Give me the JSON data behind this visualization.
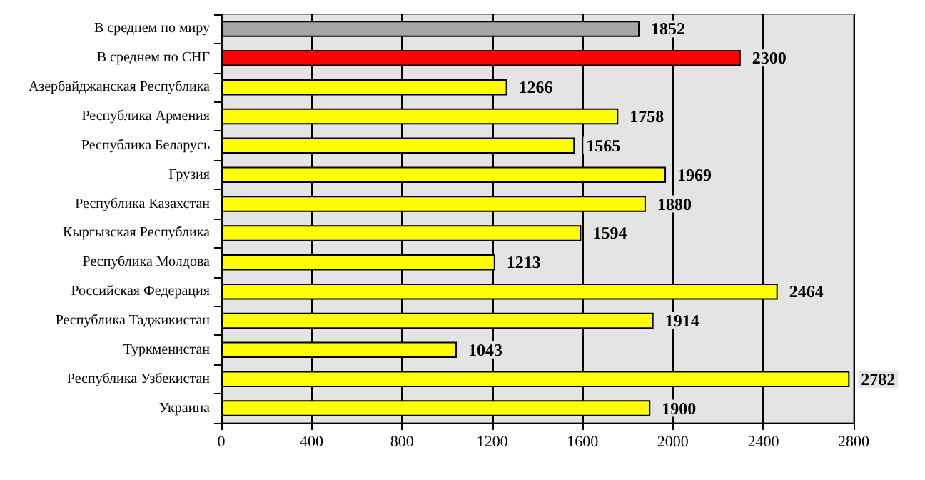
{
  "chart_data": {
    "type": "bar",
    "orientation": "horizontal",
    "categories": [
      "В среднем по миру",
      "В среднем по СНГ",
      "Азербайджанская Республика",
      "Республика Армения",
      "Республика Беларусь",
      "Грузия",
      "Республика Казахстан",
      "Кыргызская Республика",
      "Республика Молдова",
      "Российская Федерация",
      "Республика Таджикистан",
      "Туркменистан",
      "Республика Узбекистан",
      "Украина"
    ],
    "values": [
      1852,
      2300,
      1266,
      1758,
      1565,
      1969,
      1880,
      1594,
      1213,
      2464,
      1914,
      1043,
      2782,
      1900
    ],
    "colors": [
      "#a6a6a6",
      "#ff0000",
      "#ffff00",
      "#ffff00",
      "#ffff00",
      "#ffff00",
      "#ffff00",
      "#ffff00",
      "#ffff00",
      "#ffff00",
      "#ffff00",
      "#ffff00",
      "#ffff00",
      "#ffff00"
    ],
    "xlim": [
      0,
      2800
    ],
    "xticks": [
      0,
      400,
      800,
      1200,
      1600,
      2000,
      2400,
      2800
    ],
    "grid": "x",
    "data_labels": true
  }
}
